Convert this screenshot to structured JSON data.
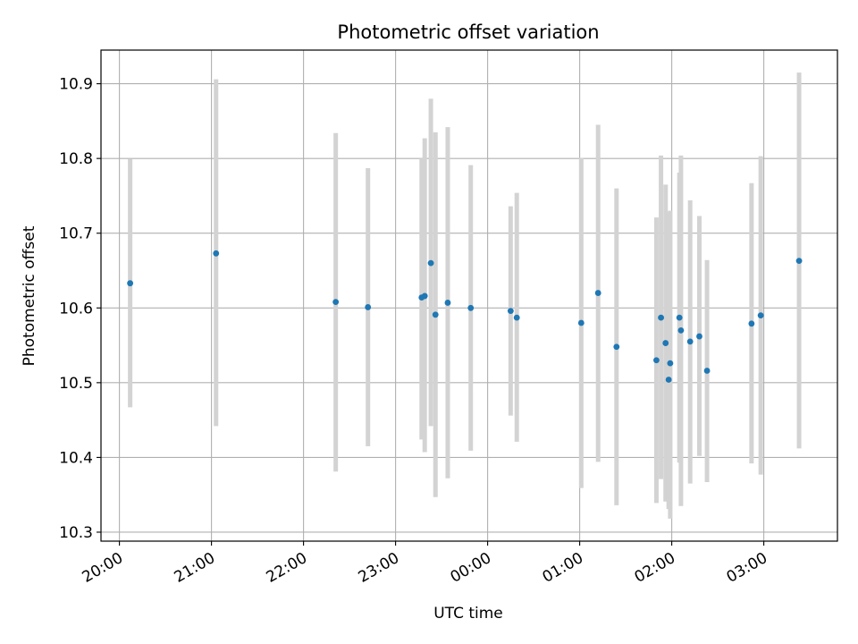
{
  "chart_data": {
    "type": "scatter",
    "title": "Photometric offset variation",
    "xlabel": "UTC time",
    "ylabel": "Photometric offset",
    "x_range": [
      "19:48",
      "03:48"
    ],
    "ylim": [
      10.288,
      10.945
    ],
    "x_ticks": [
      "20:00",
      "21:00",
      "22:00",
      "23:00",
      "00:00",
      "01:00",
      "02:00",
      "03:00"
    ],
    "y_ticks": [
      10.3,
      10.4,
      10.5,
      10.6,
      10.7,
      10.8,
      10.9
    ],
    "y_tick_labels": [
      "10.3",
      "10.4",
      "10.5",
      "10.6",
      "10.7",
      "10.8",
      "10.9"
    ],
    "grid": true,
    "colors": {
      "points": "#1f77b4",
      "errorbars": "#d3d3d3",
      "grid": "#b0b0b0"
    },
    "series": [
      {
        "points": [
          {
            "x": "20:07",
            "y": 10.633,
            "y_low": 10.467,
            "y_high": 10.799
          },
          {
            "x": "21:03",
            "y": 10.673,
            "y_low": 10.442,
            "y_high": 10.906
          },
          {
            "x": "22:21",
            "y": 10.608,
            "y_low": 10.381,
            "y_high": 10.834
          },
          {
            "x": "22:42",
            "y": 10.601,
            "y_low": 10.415,
            "y_high": 10.787
          },
          {
            "x": "23:17",
            "y": 10.614,
            "y_low": 10.424,
            "y_high": 10.8
          },
          {
            "x": "23:19",
            "y": 10.616,
            "y_low": 10.407,
            "y_high": 10.827
          },
          {
            "x": "23:23",
            "y": 10.66,
            "y_low": 10.442,
            "y_high": 10.88
          },
          {
            "x": "23:26",
            "y": 10.591,
            "y_low": 10.347,
            "y_high": 10.835
          },
          {
            "x": "23:34",
            "y": 10.607,
            "y_low": 10.372,
            "y_high": 10.842
          },
          {
            "x": "23:49",
            "y": 10.6,
            "y_low": 10.409,
            "y_high": 10.791
          },
          {
            "x": "00:15",
            "y": 10.596,
            "y_low": 10.456,
            "y_high": 10.736
          },
          {
            "x": "00:19",
            "y": 10.587,
            "y_low": 10.421,
            "y_high": 10.754
          },
          {
            "x": "01:01",
            "y": 10.58,
            "y_low": 10.359,
            "y_high": 10.801
          },
          {
            "x": "01:12",
            "y": 10.62,
            "y_low": 10.394,
            "y_high": 10.845
          },
          {
            "x": "01:24",
            "y": 10.548,
            "y_low": 10.336,
            "y_high": 10.76
          },
          {
            "x": "01:50",
            "y": 10.53,
            "y_low": 10.339,
            "y_high": 10.721
          },
          {
            "x": "01:53",
            "y": 10.587,
            "y_low": 10.371,
            "y_high": 10.804
          },
          {
            "x": "01:56",
            "y": 10.553,
            "y_low": 10.341,
            "y_high": 10.765
          },
          {
            "x": "01:58",
            "y": 10.504,
            "y_low": 10.331,
            "y_high": 10.728
          },
          {
            "x": "01:59",
            "y": 10.526,
            "y_low": 10.318,
            "y_high": 10.73
          },
          {
            "x": "02:05",
            "y": 10.587,
            "y_low": 10.393,
            "y_high": 10.781
          },
          {
            "x": "02:06",
            "y": 10.57,
            "y_low": 10.335,
            "y_high": 10.804
          },
          {
            "x": "02:12",
            "y": 10.555,
            "y_low": 10.365,
            "y_high": 10.744
          },
          {
            "x": "02:18",
            "y": 10.562,
            "y_low": 10.402,
            "y_high": 10.723
          },
          {
            "x": "02:23",
            "y": 10.516,
            "y_low": 10.367,
            "y_high": 10.664
          },
          {
            "x": "02:52",
            "y": 10.579,
            "y_low": 10.392,
            "y_high": 10.767
          },
          {
            "x": "02:58",
            "y": 10.59,
            "y_low": 10.377,
            "y_high": 10.803
          },
          {
            "x": "03:23",
            "y": 10.663,
            "y_low": 10.412,
            "y_high": 10.915
          }
        ]
      }
    ]
  }
}
